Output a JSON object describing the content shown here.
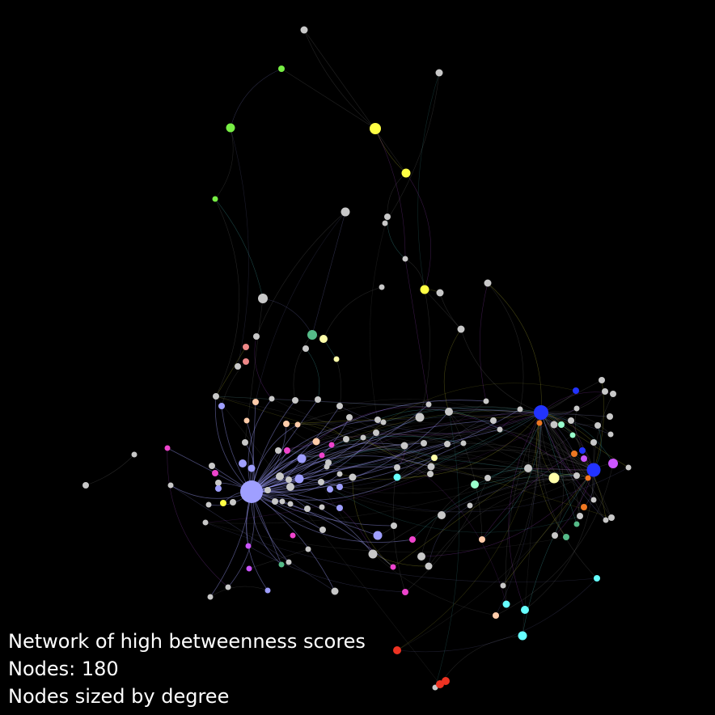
{
  "caption": {
    "line1": "Network of high betweenness scores",
    "line2": "Nodes: 180",
    "line3": "Nodes sized by degree"
  },
  "colors": {
    "background": "#000000",
    "text": "#ffffff",
    "edge": "#8a8a8a",
    "gray": "#c8c8c8",
    "lavender": "#9f9fff",
    "green": "#77ee44",
    "yellow": "#ffff44",
    "blue": "#2233ff",
    "purple": "#cc55ff",
    "cyan": "#66ffff",
    "red": "#ee3322",
    "magenta": "#ee44cc",
    "pink": "#ee8888",
    "teal": "#55bb88",
    "orange": "#ee7722",
    "lightyellow": "#ffffaa",
    "peach": "#ffccaa",
    "mint": "#99ffcc"
  },
  "chart_data": {
    "type": "network",
    "node_count": 180,
    "sizing": "degree"
  }
}
